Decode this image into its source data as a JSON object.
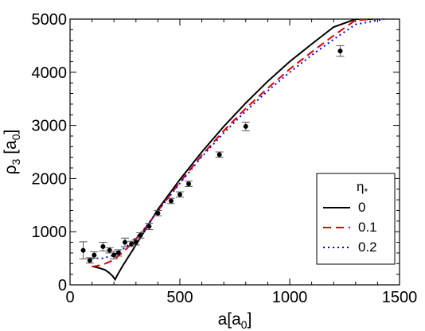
{
  "chart_data": {
    "type": "line",
    "xlabel_main": "a[a",
    "xlabel_sub": "0",
    "xlabel_close": "]",
    "ylabel_main": "ρ",
    "ylabel_sub1": "3",
    "ylabel_mid": " [a",
    "ylabel_sub2": "0",
    "ylabel_close": "]",
    "xlim": [
      0,
      1500
    ],
    "ylim": [
      0,
      5000
    ],
    "xticks": [
      0,
      500,
      1000,
      1500
    ],
    "xtick_labels": [
      "0",
      "500",
      "1000",
      "1500"
    ],
    "yticks": [
      0,
      1000,
      2000,
      3000,
      4000,
      5000
    ],
    "ytick_labels": [
      "0",
      "1000",
      "2000",
      "3000",
      "4000",
      "5000"
    ],
    "legend": {
      "title_main": "η",
      "title_sub": "*",
      "placement": "lower-right"
    },
    "series": [
      {
        "name": "0",
        "color": "#000000",
        "style": "solid",
        "x": [
          100,
          130,
          160,
          180,
          195,
          205,
          215,
          240,
          280,
          330,
          400,
          500,
          600,
          700,
          800,
          900,
          1000,
          1100,
          1200,
          1300,
          1375
        ],
        "y": [
          350,
          320,
          280,
          220,
          160,
          100,
          180,
          360,
          620,
          950,
          1420,
          1980,
          2500,
          2980,
          3420,
          3830,
          4200,
          4530,
          4850,
          5150,
          5380
        ]
      },
      {
        "name": "0.1",
        "color": "#e00000",
        "style": "dashed",
        "x": [
          100,
          150,
          200,
          260,
          330,
          400,
          500,
          600,
          700,
          800,
          900,
          1000,
          1100,
          1200,
          1300,
          1400
        ],
        "y": [
          340,
          380,
          470,
          690,
          1000,
          1390,
          1930,
          2440,
          2900,
          3320,
          3700,
          4060,
          4380,
          4690,
          4980,
          5250
        ]
      },
      {
        "name": "0.2",
        "color": "#0000e0",
        "style": "dotted",
        "x": [
          100,
          150,
          200,
          260,
          330,
          400,
          500,
          600,
          700,
          800,
          900,
          1000,
          1100,
          1200,
          1300,
          1430
        ],
        "y": [
          500,
          500,
          560,
          730,
          1010,
          1390,
          1910,
          2410,
          2860,
          3270,
          3650,
          4000,
          4320,
          4620,
          4900,
          5250
        ]
      }
    ],
    "data_points": {
      "name": "data",
      "color": "#000000",
      "x": [
        60,
        90,
        110,
        150,
        180,
        200,
        220,
        250,
        280,
        300,
        320,
        360,
        400,
        460,
        500,
        540,
        680,
        800,
        1230
      ],
      "y": [
        650,
        460,
        560,
        720,
        650,
        560,
        600,
        800,
        770,
        800,
        930,
        1100,
        1350,
        1580,
        1700,
        1900,
        2450,
        2980,
        4400
      ],
      "err": [
        160,
        50,
        60,
        80,
        50,
        70,
        60,
        80,
        50,
        50,
        50,
        60,
        50,
        50,
        50,
        50,
        50,
        80,
        100
      ]
    }
  }
}
